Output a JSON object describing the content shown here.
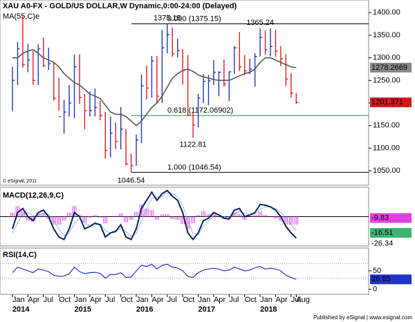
{
  "header": {
    "title": "XAU A0-FX - GOLD/US DOLLAR,W Dynamic,0:00-24:00 (Delayed)",
    "watermark": "© eSignal, 2011",
    "footer": "Published by eSignal | www.esignal.com"
  },
  "chart_data": [
    {
      "type": "ohlc",
      "up_color": "#1f36b0",
      "down_color": "#e0191f",
      "high": [
        1280,
        1335,
        1392,
        1331,
        1315,
        1330,
        1345,
        1322,
        1290,
        1255,
        1207,
        1240,
        1307,
        1308,
        1220,
        1225,
        1232,
        1205,
        1180,
        1170,
        1157,
        1191,
        1142,
        1088,
        1130,
        1263,
        1283,
        1304,
        1304,
        1362,
        1375.15,
        1367,
        1342,
        1319,
        1306,
        1180,
        1220,
        1264,
        1262,
        1295,
        1270,
        1296,
        1270,
        1326,
        1357,
        1306,
        1298,
        1310,
        1365.24,
        1361,
        1365,
        1362,
        1326,
        1308,
        1266,
        1222
      ],
      "low": [
        1182,
        1240,
        1278,
        1268,
        1240,
        1240,
        1280,
        1273,
        1205,
        1183,
        1132,
        1170,
        1167,
        1198,
        1142,
        1170,
        1170,
        1162,
        1077,
        1080,
        1098,
        1097,
        1062,
        1046.54,
        1061,
        1111,
        1208,
        1212,
        1199,
        1200,
        1310,
        1302,
        1301,
        1241,
        1171,
        1122.81,
        1146,
        1200,
        1195,
        1240,
        1215,
        1236,
        1204,
        1265,
        1271,
        1262,
        1264,
        1236,
        1303,
        1307,
        1303,
        1302,
        1281,
        1238,
        1212,
        1198
      ],
      "close": [
        1250,
        1320,
        1285,
        1295,
        1250,
        1320,
        1282,
        1287,
        1210,
        1170,
        1180,
        1200,
        1280,
        1212,
        1183,
        1183,
        1190,
        1172,
        1095,
        1133,
        1115,
        1142,
        1065,
        1061,
        1118,
        1238,
        1233,
        1293,
        1215,
        1322,
        1351,
        1309,
        1316,
        1272,
        1173,
        1151,
        1211,
        1248,
        1249,
        1268,
        1268,
        1242,
        1269,
        1322,
        1280,
        1271,
        1275,
        1303,
        1345,
        1318,
        1325,
        1315,
        1298,
        1253,
        1222,
        1201.371
      ],
      "series": [
        {
          "name": "MA(55,C)e",
          "color": "#555555",
          "values": [
            1300,
            1300,
            1310,
            1315,
            1318,
            1310,
            1300,
            1295,
            1290,
            1280,
            1265,
            1255,
            1245,
            1240,
            1230,
            1220,
            1215,
            1210,
            1195,
            1180,
            1175,
            1175,
            1170,
            1160,
            1150,
            1160,
            1175,
            1190,
            1200,
            1215,
            1235,
            1255,
            1265,
            1272,
            1275,
            1270,
            1262,
            1258,
            1255,
            1252,
            1250,
            1250,
            1250,
            1255,
            1260,
            1265,
            1268,
            1275,
            1290,
            1300,
            1300,
            1295,
            1290,
            1285,
            1280,
            1278.2669
          ]
        }
      ],
      "levels": [
        {
          "value": 1375.15,
          "label": "0.000 (1375.15)",
          "color": "#000000"
        },
        {
          "value": 1172.06902,
          "label": "0.618 (1172.06902)",
          "color": "#2e9a2e"
        },
        {
          "value": 1046.54,
          "label": "1.000 (1046.54)",
          "color": "#000000"
        }
      ],
      "ylim": [
        1018,
        1428
      ],
      "yticks": [
        {
          "value": 1050,
          "label": "1050.00"
        },
        {
          "value": 1100,
          "label": "1100.00"
        },
        {
          "value": 1150,
          "label": "1150.00"
        },
        {
          "value": 1200,
          "label": "1200.00"
        },
        {
          "value": 1250,
          "label": "1250.00"
        },
        {
          "value": 1300,
          "label": "1300.00"
        },
        {
          "value": 1350,
          "label": "1350.00"
        },
        {
          "value": 1400,
          "label": "1400.00"
        }
      ]
    },
    {
      "type": "macd",
      "title": "MACD(12,26,9,C)",
      "ylim": [
        -36,
        36
      ],
      "series": [
        {
          "name": "MACD",
          "color": "#0a1f5c",
          "values": [
            -15,
            5,
            10,
            0,
            -5,
            5,
            8,
            0,
            -15,
            -25,
            -28,
            -15,
            5,
            0,
            -15,
            -12,
            -8,
            -10,
            -25,
            -20,
            -18,
            -10,
            -25,
            -28,
            -15,
            10,
            20,
            30,
            20,
            28,
            32,
            25,
            20,
            5,
            -20,
            -28,
            -20,
            -5,
            -2,
            5,
            2,
            -2,
            -3,
            8,
            10,
            0,
            2,
            5,
            15,
            14,
            12,
            8,
            0,
            -12,
            -20,
            -26.34
          ]
        },
        {
          "name": "Signal",
          "color": "#4aa8d8",
          "values": [
            -20,
            -8,
            3,
            5,
            1,
            1,
            4,
            3,
            -5,
            -15,
            -23,
            -20,
            -8,
            -2,
            -8,
            -11,
            -10,
            -9,
            -17,
            -20,
            -19,
            -14,
            -18,
            -24,
            -21,
            -5,
            10,
            22,
            24,
            25,
            29,
            28,
            24,
            14,
            -5,
            -20,
            -22,
            -12,
            -5,
            1,
            2,
            0,
            -2,
            3,
            7,
            4,
            2,
            3,
            9,
            12,
            12,
            10,
            5,
            -3,
            -10,
            -16.51
          ]
        },
        {
          "name": "Histogram",
          "color": "#e040e0",
          "values": [
            5,
            13,
            7,
            -5,
            -6,
            4,
            4,
            -3,
            -10,
            -10,
            -5,
            5,
            13,
            2,
            -7,
            -1,
            2,
            -1,
            -8,
            0,
            1,
            4,
            -7,
            -4,
            6,
            15,
            10,
            8,
            -4,
            3,
            3,
            -3,
            -4,
            -9,
            -15,
            -8,
            2,
            7,
            3,
            4,
            0,
            -2,
            -1,
            5,
            3,
            -4,
            0,
            2,
            6,
            2,
            0,
            -2,
            -5,
            -9,
            -10,
            -9.83
          ]
        }
      ]
    },
    {
      "type": "rsi",
      "title": "RSI(14,C)",
      "ylim": [
        -14,
        112
      ],
      "yticks": [
        0,
        50
      ],
      "guides": [
        30,
        70
      ],
      "series": [
        {
          "name": "RSI",
          "color": "#2233cc",
          "values": [
            45,
            60,
            55,
            50,
            45,
            55,
            52,
            48,
            38,
            35,
            36,
            42,
            60,
            48,
            42,
            45,
            46,
            43,
            30,
            40,
            40,
            45,
            32,
            33,
            50,
            65,
            62,
            68,
            55,
            65,
            68,
            60,
            58,
            50,
            35,
            32,
            45,
            52,
            55,
            57,
            55,
            50,
            52,
            60,
            55,
            50,
            52,
            58,
            62,
            55,
            57,
            55,
            50,
            38,
            32,
            26.85
          ]
        }
      ],
      "categories": [
        "Jan",
        null,
        null,
        "Apr",
        null,
        null,
        "Jul",
        null,
        null,
        "Oct",
        null,
        null,
        "Jan",
        null,
        null,
        "Apr",
        null,
        null,
        "Jul",
        null,
        null,
        "Oct",
        null,
        null,
        "Jan",
        null,
        null,
        "Apr",
        null,
        null,
        "Jul",
        null,
        null,
        "Oct",
        null,
        null,
        "Jan",
        null,
        null,
        "Apr",
        null,
        null,
        "Jul",
        null,
        null,
        "Oct",
        null,
        null,
        "Jan",
        null,
        null,
        "Apr",
        null,
        null,
        "Jul",
        "Aug"
      ],
      "years": [
        "2014",
        null,
        null,
        null,
        null,
        null,
        null,
        null,
        null,
        null,
        null,
        null,
        "2015",
        null,
        null,
        null,
        null,
        null,
        null,
        null,
        null,
        null,
        null,
        null,
        "2016",
        null,
        null,
        null,
        null,
        null,
        null,
        null,
        null,
        null,
        null,
        null,
        "2017",
        null,
        null,
        null,
        null,
        null,
        null,
        null,
        null,
        null,
        null,
        null,
        "2018",
        null,
        null,
        null,
        null,
        null,
        null,
        null
      ]
    }
  ]
}
